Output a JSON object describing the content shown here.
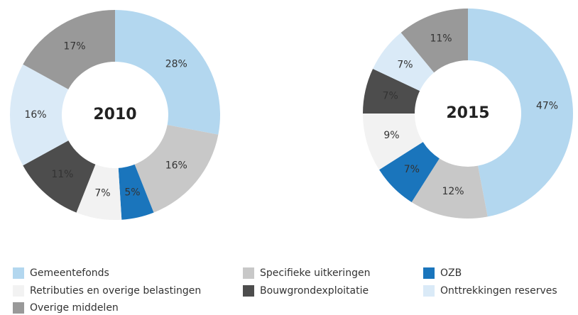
{
  "chart_data": [
    {
      "type": "pie",
      "title": "2010",
      "values": [
        28,
        16,
        5,
        7,
        11,
        16,
        17
      ],
      "value_labels": [
        "28%",
        "16%",
        "5%",
        "7%",
        "11%",
        "16%",
        "17%"
      ]
    },
    {
      "type": "pie",
      "title": "2015",
      "values": [
        47,
        12,
        7,
        9,
        7,
        7,
        11
      ],
      "value_labels": [
        "47%",
        "12%",
        "7%",
        "9%",
        "7%",
        "7%",
        "11%"
      ]
    }
  ],
  "legend": {
    "categories": [
      "Gemeentefonds",
      "Specifieke uitkeringen",
      "OZB",
      "Retributies en overige belastingen",
      "Bouwgrondexploitatie",
      "Onttrekkingen reserves",
      "Overige middelen"
    ],
    "colors": [
      "#b3d7ef",
      "#c8c8c8",
      "#1a75bc",
      "#f2f2f2",
      "#4d4d4d",
      "#daeaf7",
      "#999999"
    ]
  }
}
